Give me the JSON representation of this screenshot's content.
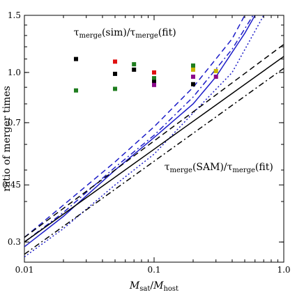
{
  "chart_data": {
    "type": "scatter",
    "xlabel": {
      "main": "M",
      "sub1": "sat",
      "slash": "/",
      "main2": "M",
      "sub2": "host"
    },
    "ylabel": "ratio of merger times",
    "x_scale": "log",
    "y_scale": "log",
    "xlim": [
      0.01,
      1.0
    ],
    "ylim": [
      0.26,
      1.5
    ],
    "x_ticks": [
      0.01,
      0.1,
      1.0
    ],
    "x_tick_labels": [
      "0.01",
      "0.1",
      "1.0"
    ],
    "y_ticks": [
      0.3,
      0.45,
      0.7,
      1.0,
      1.5
    ],
    "y_tick_labels": [
      "0.3",
      "0.45",
      "0.7",
      "1.0",
      "1.5"
    ],
    "annotations": [
      {
        "tau": "τ",
        "sub": "merge",
        "paren": "(sim)/",
        "tau2": "τ",
        "sub2": "merge",
        "paren2": "(fit)",
        "x": 0.024,
        "y": 1.3
      },
      {
        "tau": "τ",
        "sub": "merge",
        "paren": "(SAM)/",
        "tau2": "τ",
        "sub2": "merge",
        "paren2": "(fit)",
        "x": 0.12,
        "y": 0.5
      }
    ],
    "points": [
      {
        "x": 0.025,
        "y": 1.1,
        "color": "#000000"
      },
      {
        "x": 0.025,
        "y": 0.88,
        "color": "#1e7d1e"
      },
      {
        "x": 0.05,
        "y": 1.08,
        "color": "#e01010"
      },
      {
        "x": 0.05,
        "y": 0.99,
        "color": "#000000"
      },
      {
        "x": 0.05,
        "y": 0.89,
        "color": "#1e7d1e"
      },
      {
        "x": 0.07,
        "y": 1.06,
        "color": "#1e7d1e"
      },
      {
        "x": 0.07,
        "y": 1.02,
        "color": "#000000"
      },
      {
        "x": 0.1,
        "y": 1.0,
        "color": "#e01010"
      },
      {
        "x": 0.1,
        "y": 0.96,
        "color": "#1e7d1e"
      },
      {
        "x": 0.1,
        "y": 0.935,
        "color": "#000000"
      },
      {
        "x": 0.1,
        "y": 0.915,
        "color": "#8b0a8b"
      },
      {
        "x": 0.2,
        "y": 1.05,
        "color": "#1e7d1e"
      },
      {
        "x": 0.2,
        "y": 1.02,
        "color": "#c8b400"
      },
      {
        "x": 0.2,
        "y": 0.97,
        "color": "#8b0a8b"
      },
      {
        "x": 0.2,
        "y": 0.92,
        "color": "#000000"
      },
      {
        "x": 0.3,
        "y": 1.01,
        "color": "#c8b400"
      },
      {
        "x": 0.3,
        "y": 0.97,
        "color": "#8b0a8b"
      }
    ],
    "series": [
      {
        "color": "#1c1cc8",
        "dash": "",
        "x": [
          0.01,
          0.02,
          0.05,
          0.1,
          0.2,
          0.3,
          0.5,
          0.6
        ],
        "y": [
          0.29,
          0.36,
          0.5,
          0.63,
          0.8,
          0.97,
          1.32,
          1.5
        ]
      },
      {
        "color": "#1c1cc8",
        "dash": "8,5",
        "x": [
          0.01,
          0.02,
          0.05,
          0.1,
          0.2,
          0.4,
          0.5
        ],
        "y": [
          0.31,
          0.39,
          0.53,
          0.68,
          0.9,
          1.27,
          1.5
        ]
      },
      {
        "color": "#1c1cc8",
        "dash": "8,4,2,4",
        "x": [
          0.01,
          0.02,
          0.05,
          0.1,
          0.2,
          0.4,
          0.58
        ],
        "y": [
          0.3,
          0.37,
          0.51,
          0.64,
          0.84,
          1.18,
          1.5
        ]
      },
      {
        "color": "#1c1cc8",
        "dash": "2,3",
        "x": [
          0.01,
          0.02,
          0.05,
          0.1,
          0.2,
          0.4,
          0.7
        ],
        "y": [
          0.27,
          0.33,
          0.45,
          0.56,
          0.75,
          1.0,
          1.5
        ]
      },
      {
        "color": "#000000",
        "dash": "",
        "x": [
          0.01,
          1.0
        ],
        "y": [
          0.3,
          1.12
        ]
      },
      {
        "color": "#000000",
        "dash": "8,5",
        "x": [
          0.01,
          1.0
        ],
        "y": [
          0.31,
          1.22
        ]
      },
      {
        "color": "#000000",
        "dash": "8,4,2,4",
        "x": [
          0.01,
          1.0
        ],
        "y": [
          0.275,
          1.03
        ]
      }
    ]
  }
}
